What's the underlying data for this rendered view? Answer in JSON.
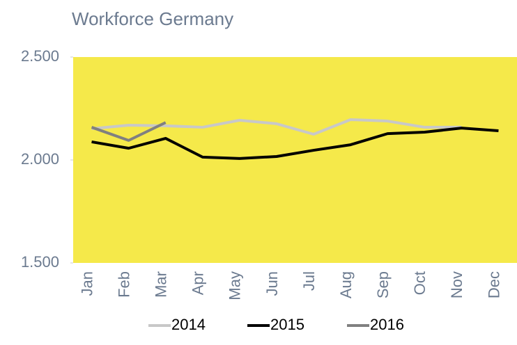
{
  "chart_data": {
    "type": "line",
    "title": "Workforce Germany",
    "categories": [
      "Jan",
      "Feb",
      "Mar",
      "Apr",
      "May",
      "Jun",
      "Jul",
      "Aug",
      "Sep",
      "Oct",
      "Nov",
      "Dec"
    ],
    "series": [
      {
        "name": "2014",
        "color": "#c8c8c8",
        "values": [
          2152,
          2169,
          2166,
          2159,
          2193,
          2176,
          2125,
          2196,
          2189,
          2159,
          2159,
          null
        ]
      },
      {
        "name": "2015",
        "color": "#000000",
        "values": [
          2088,
          2057,
          2105,
          2014,
          2007,
          2017,
          2047,
          2074,
          2128,
          2135,
          2155,
          2142
        ]
      },
      {
        "name": "2016",
        "color": "#808080",
        "values": [
          2159,
          2095,
          2182,
          null,
          null,
          null,
          null,
          null,
          null,
          null,
          null,
          null
        ]
      }
    ],
    "ylim": [
      1500,
      2500
    ],
    "yticks": [
      {
        "value": 1500,
        "label": "1.500"
      },
      {
        "value": 2000,
        "label": "2.000"
      },
      {
        "value": 2500,
        "label": "2.500"
      }
    ],
    "plot_background": "#f5e94a"
  }
}
